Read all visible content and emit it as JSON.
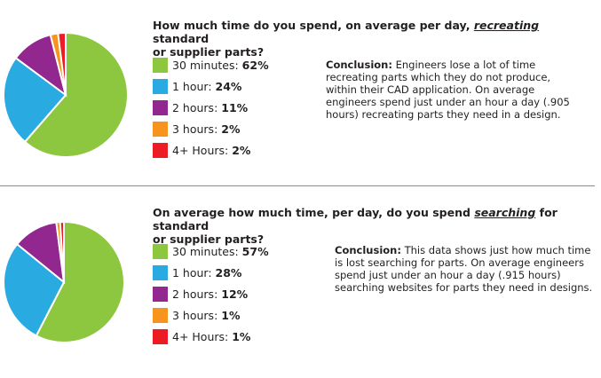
{
  "charts": [
    {
      "title_pre": "How much time do you spend, on average per day, ",
      "title_em": "recreating",
      "title_post": " standard",
      "title_line2": "or supplier parts?",
      "conclusion_label": "Conclusion:",
      "conclusion_text": " Engineers lose a lot of time recreating parts which they do not produce, within their CAD application. On average engineers spend just under an hour a day (.905 hours) recreating parts they need in a design."
    },
    {
      "title_pre": "On average how much time, per day, do you spend ",
      "title_em": "searching",
      "title_post": " for standard",
      "title_line2": "or supplier parts?",
      "conclusion_label": "Conclusion:",
      "conclusion_text": " This data shows just how much time is lost searching for parts. On average engineers spend just under an hour a day (.915 hours) searching websites for parts they need in designs."
    }
  ],
  "chart_data": [
    {
      "type": "pie",
      "categories": [
        "30 minutes:",
        "1 hour:",
        "2 hours:",
        "3 hours:",
        "4+ Hours:"
      ],
      "values": [
        62,
        24,
        11,
        2,
        2
      ],
      "labels": [
        "62%",
        "24%",
        "11%",
        "2%",
        "2%"
      ],
      "colors": [
        "#8dc63f",
        "#29abe2",
        "#92278f",
        "#f7941d",
        "#ed1c24"
      ],
      "legend": "right"
    },
    {
      "type": "pie",
      "categories": [
        "30 minutes:",
        "1 hour:",
        "2 hours:",
        "3 hours:",
        "4+ Hours:"
      ],
      "values": [
        57,
        28,
        12,
        1,
        1
      ],
      "labels": [
        "57%",
        "28%",
        "12%",
        "1%",
        "1%"
      ],
      "colors": [
        "#8dc63f",
        "#29abe2",
        "#92278f",
        "#f7941d",
        "#ed1c24"
      ],
      "legend": "right"
    }
  ]
}
